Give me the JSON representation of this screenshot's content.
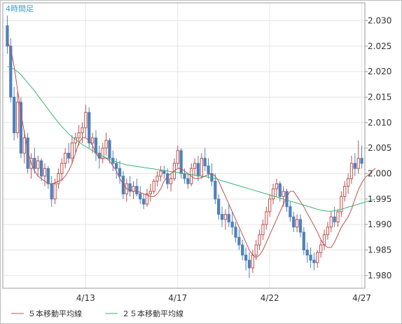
{
  "chart_data": {
    "type": "candlestick",
    "title": "4時間足",
    "timeframe": "4時間足",
    "y_ticks": [
      "2.030",
      "2.025",
      "2.020",
      "2.015",
      "2.010",
      "2.005",
      "2.000",
      "1.995",
      "1.990",
      "1.985",
      "1.980"
    ],
    "y_tick_values": [
      2.03,
      2.025,
      2.02,
      2.015,
      2.01,
      2.005,
      2.0,
      1.995,
      1.99,
      1.985,
      1.98
    ],
    "ylim": [
      1.9775,
      2.0335
    ],
    "x_ticks": [
      {
        "label": "4/13",
        "index": 23
      },
      {
        "label": "4/17",
        "index": 50
      },
      {
        "label": "4/22",
        "index": 77
      },
      {
        "label": "4/27",
        "index": 104
      }
    ],
    "grid": true,
    "legend_position": "bottom",
    "colors": {
      "up": "#c0504d",
      "down": "#4f81bd",
      "ma5": "#c0504d",
      "ma25": "#3cb371",
      "grid": "#e4e4e4",
      "axis": "#999999"
    },
    "series": [
      {
        "name": "5本移動平均線",
        "color": "#c0504d",
        "values": [
          2.026,
          2.0245,
          2.021,
          2.0165,
          2.012,
          2.008,
          2.0045,
          2.002,
          2.0005,
          1.9995,
          1.999,
          1.9985,
          1.998,
          1.998,
          1.9982,
          1.9985,
          1.9988,
          1.9995,
          2.0005,
          2.002,
          2.004,
          2.006,
          2.007,
          2.007,
          2.0065,
          2.0055,
          2.004,
          2.003,
          2.003,
          2.003,
          2.0025,
          2.0015,
          2.0005,
          1.999,
          1.998,
          1.997,
          1.9968,
          1.9965,
          1.9965,
          1.9963,
          1.996,
          1.9958,
          1.9955,
          1.9955,
          1.996,
          1.997,
          1.9985,
          1.9995,
          2.0,
          2.0005,
          2.001,
          2.001,
          2.0005,
          2.0,
          1.9995,
          1.999,
          1.999,
          1.9992,
          1.9995,
          1.9998,
          2.0,
          1.9995,
          1.9985,
          1.997,
          1.9955,
          1.994,
          1.9925,
          1.991,
          1.9895,
          1.988,
          1.9865,
          1.985,
          1.984,
          1.9835,
          1.984,
          1.985,
          1.9865,
          1.988,
          1.9895,
          1.991,
          1.9925,
          1.994,
          1.9955,
          1.9965,
          1.9965,
          1.9955,
          1.9945,
          1.9935,
          1.9922,
          1.991,
          1.9898,
          1.9885,
          1.987,
          1.986,
          1.9855,
          1.9855,
          1.9865,
          1.988,
          1.9895,
          1.9905,
          1.9915,
          1.993,
          1.995,
          1.9968,
          1.9982,
          1.9992,
          1.9998,
          2.0005,
          2.001
        ]
      },
      {
        "name": "２５本移動平均線",
        "color": "#3cb371",
        "values": [
          2.021,
          2.0208,
          2.0205,
          2.02,
          2.0194,
          2.0186,
          2.0178,
          2.017,
          2.0162,
          2.0153,
          2.0144,
          2.0135,
          2.0126,
          2.0117,
          2.0108,
          2.01,
          2.0092,
          2.0085,
          2.0078,
          2.0072,
          2.0067,
          2.0062,
          2.0057,
          2.0053,
          2.0049,
          2.0045,
          2.0041,
          2.0037,
          2.0034,
          2.0031,
          2.0028,
          2.0025,
          2.0023,
          2.0021,
          2.0019,
          2.0017,
          2.0016,
          2.0015,
          2.0014,
          2.0013,
          2.0012,
          2.0011,
          2.001,
          2.0009,
          2.0008,
          2.0007,
          2.0006,
          2.0005,
          2.0004,
          2.0003,
          2.0002,
          2.0001,
          2.0,
          1.9999,
          1.9998,
          1.9997,
          1.9996,
          1.9995,
          1.9994,
          1.9993,
          1.9992,
          1.999,
          1.9988,
          1.9986,
          1.9984,
          1.9982,
          1.998,
          1.9978,
          1.9976,
          1.9974,
          1.9972,
          1.997,
          1.9968,
          1.9966,
          1.9964,
          1.9962,
          1.996,
          1.9958,
          1.9956,
          1.9954,
          1.9952,
          1.995,
          1.9948,
          1.9946,
          1.9944,
          1.9942,
          1.994,
          1.9938,
          1.9936,
          1.9934,
          1.9932,
          1.993,
          1.9928,
          1.9927,
          1.9926,
          1.9926,
          1.9927,
          1.9928,
          1.993,
          1.9932,
          1.9934,
          1.9936,
          1.9938,
          1.994,
          1.9942,
          1.9944,
          1.9946,
          1.9948,
          1.995
        ]
      }
    ],
    "candles": [
      [
        2.029,
        2.031,
        2.0235,
        2.025
      ],
      [
        2.025,
        2.0265,
        2.014,
        2.015
      ],
      [
        2.015,
        2.017,
        2.0065,
        2.008
      ],
      [
        2.008,
        2.016,
        2.007,
        2.014
      ],
      [
        2.014,
        2.015,
        2.003,
        2.004
      ],
      [
        2.004,
        2.0085,
        2.002,
        2.007
      ],
      [
        2.007,
        2.008,
        2.0,
        2.001
      ],
      [
        2.001,
        2.004,
        1.999,
        2.003
      ],
      [
        2.003,
        2.005,
        2.0,
        2.001
      ],
      [
        2.001,
        2.0035,
        1.9995,
        2.0025
      ],
      [
        2.0025,
        2.003,
        1.9985,
        1.9995
      ],
      [
        1.9995,
        2.002,
        1.9975,
        2.001
      ],
      [
        2.001,
        2.0015,
        1.997,
        1.998
      ],
      [
        1.998,
        1.9995,
        1.9935,
        1.995
      ],
      [
        1.995,
        1.999,
        1.994,
        1.998
      ],
      [
        1.998,
        2.001,
        1.997,
        2.0
      ],
      [
        2.0,
        2.003,
        1.9985,
        2.002
      ],
      [
        2.002,
        2.005,
        2.001,
        2.004
      ],
      [
        2.004,
        2.006,
        2.002,
        2.003
      ],
      [
        2.003,
        2.0075,
        2.002,
        2.006
      ],
      [
        2.006,
        2.008,
        2.004,
        2.007
      ],
      [
        2.007,
        2.0095,
        2.0055,
        2.008
      ],
      [
        2.008,
        2.01,
        2.006,
        2.009
      ],
      [
        2.009,
        2.0135,
        2.007,
        2.012
      ],
      [
        2.012,
        2.013,
        2.005,
        2.006
      ],
      [
        2.006,
        2.008,
        2.004,
        2.007
      ],
      [
        2.007,
        2.0085,
        2.0025,
        2.004
      ],
      [
        2.004,
        2.0055,
        2.001,
        2.003
      ],
      [
        2.003,
        2.006,
        2.002,
        2.005
      ],
      [
        2.005,
        2.008,
        2.0035,
        2.0065
      ],
      [
        2.0065,
        2.007,
        2.002,
        2.003
      ],
      [
        2.003,
        2.0045,
        2.0005,
        2.002
      ],
      [
        2.002,
        2.003,
        1.999,
        2.001
      ],
      [
        2.001,
        2.0025,
        1.998,
        1.9995
      ],
      [
        1.9995,
        2.0005,
        1.995,
        1.996
      ],
      [
        1.996,
        1.999,
        1.9945,
        1.998
      ],
      [
        1.998,
        1.9995,
        1.9955,
        1.9965
      ],
      [
        1.9965,
        1.9985,
        1.995,
        1.9975
      ],
      [
        1.9975,
        1.999,
        1.9955,
        1.996
      ],
      [
        1.996,
        1.9975,
        1.994,
        1.995
      ],
      [
        1.995,
        1.996,
        1.993,
        1.994
      ],
      [
        1.994,
        1.997,
        1.9935,
        1.996
      ],
      [
        1.996,
        1.998,
        1.9945,
        1.9965
      ],
      [
        1.9965,
        1.999,
        1.996,
        1.9985
      ],
      [
        1.9985,
        2.0005,
        1.9975,
        1.9995
      ],
      [
        1.9995,
        2.0015,
        1.9985,
        2.0005
      ],
      [
        2.0005,
        2.0015,
        1.999,
        2.0
      ],
      [
        2.0,
        2.001,
        1.997,
        1.998
      ],
      [
        1.998,
        2.0,
        1.9965,
        1.999
      ],
      [
        1.999,
        2.003,
        1.9985,
        2.002
      ],
      [
        2.002,
        2.0055,
        2.001,
        2.0045
      ],
      [
        2.0045,
        2.005,
        1.999,
        2.0
      ],
      [
        2.0,
        2.001,
        1.998,
        1.999
      ],
      [
        1.999,
        2.0,
        1.997,
        1.998
      ],
      [
        1.998,
        2.002,
        1.9975,
        2.001
      ],
      [
        2.001,
        2.003,
        1.9995,
        2.002
      ],
      [
        2.002,
        2.0035,
        1.9985,
        1.9995
      ],
      [
        1.9995,
        2.004,
        1.999,
        2.003
      ],
      [
        2.003,
        2.005,
        2.0005,
        2.0015
      ],
      [
        2.0015,
        2.003,
        1.999,
        2.0
      ],
      [
        2.0,
        2.002,
        1.9975,
        1.9985
      ],
      [
        1.9985,
        2.0,
        1.994,
        1.995
      ],
      [
        1.995,
        1.996,
        1.991,
        1.992
      ],
      [
        1.992,
        1.9935,
        1.9895,
        1.991
      ],
      [
        1.991,
        1.993,
        1.989,
        1.992
      ],
      [
        1.992,
        1.994,
        1.9895,
        1.9905
      ],
      [
        1.9905,
        1.9925,
        1.988,
        1.9895
      ],
      [
        1.9895,
        1.9905,
        1.9865,
        1.9875
      ],
      [
        1.9875,
        1.989,
        1.985,
        1.986
      ],
      [
        1.986,
        1.987,
        1.983,
        1.984
      ],
      [
        1.984,
        1.9855,
        1.981,
        1.983
      ],
      [
        1.983,
        1.9845,
        1.9795,
        1.9815
      ],
      [
        1.9815,
        1.985,
        1.9805,
        1.984
      ],
      [
        1.984,
        1.987,
        1.983,
        1.986
      ],
      [
        1.986,
        1.989,
        1.985,
        1.988
      ],
      [
        1.988,
        1.991,
        1.987,
        1.99
      ],
      [
        1.99,
        1.9935,
        1.989,
        1.9925
      ],
      [
        1.9925,
        1.996,
        1.9915,
        1.995
      ],
      [
        1.995,
        1.998,
        1.994,
        1.997
      ],
      [
        1.997,
        1.999,
        1.9955,
        1.998
      ],
      [
        1.998,
        1.9985,
        1.9945,
        1.9955
      ],
      [
        1.9955,
        1.9975,
        1.9935,
        1.9965
      ],
      [
        1.9965,
        1.997,
        1.9925,
        1.9935
      ],
      [
        1.9935,
        1.9945,
        1.9905,
        1.9915
      ],
      [
        1.9915,
        1.9925,
        1.9885,
        1.9895
      ],
      [
        1.9895,
        1.992,
        1.9885,
        1.991
      ],
      [
        1.991,
        1.992,
        1.9875,
        1.9885
      ],
      [
        1.9885,
        1.9895,
        1.984,
        1.985
      ],
      [
        1.985,
        1.9865,
        1.9825,
        1.984
      ],
      [
        1.984,
        1.9855,
        1.9815,
        1.983
      ],
      [
        1.983,
        1.9845,
        1.981,
        1.9825
      ],
      [
        1.9825,
        1.985,
        1.9815,
        1.9845
      ],
      [
        1.9845,
        1.987,
        1.9835,
        1.986
      ],
      [
        1.986,
        1.989,
        1.985,
        1.988
      ],
      [
        1.988,
        1.9905,
        1.987,
        1.9895
      ],
      [
        1.9895,
        1.9925,
        1.9885,
        1.9915
      ],
      [
        1.9915,
        1.9935,
        1.9895,
        1.9905
      ],
      [
        1.9905,
        1.993,
        1.9895,
        1.9925
      ],
      [
        1.9925,
        1.9965,
        1.9915,
        1.9955
      ],
      [
        1.9955,
        1.9985,
        1.9945,
        1.9975
      ],
      [
        1.9975,
        2.0,
        1.996,
        1.999
      ],
      [
        1.999,
        2.0035,
        1.998,
        2.002
      ],
      [
        2.002,
        2.004,
        1.9995,
        2.001
      ],
      [
        2.001,
        2.0065,
        2.0,
        2.003
      ],
      [
        2.003,
        2.0055,
        2.001,
        2.002
      ]
    ]
  },
  "legend": {
    "ma5_label": "５本移動平均線",
    "ma25_label": "２５本移動平均線"
  }
}
